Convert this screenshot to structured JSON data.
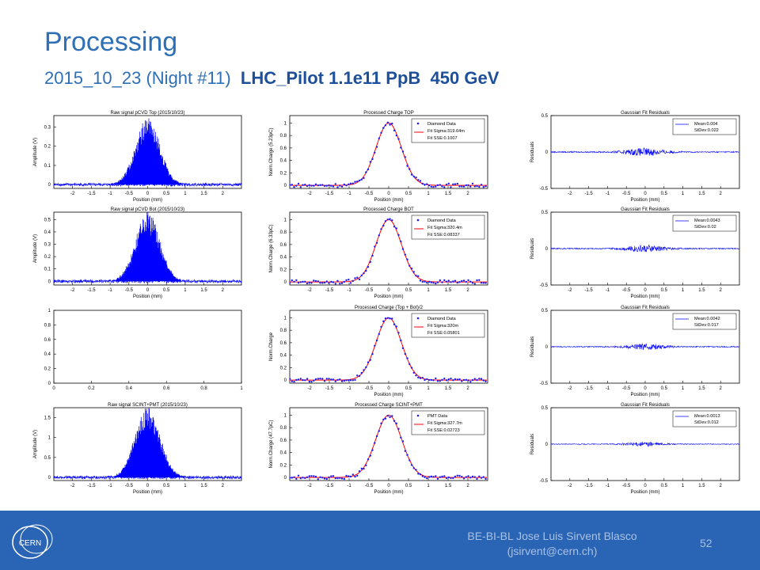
{
  "slide": {
    "title": "Processing",
    "subtitle_plain": "2015_10_23 (Night #11)  ",
    "subtitle_bold": "LHC_Pilot 1.1e11 PpB  450 GeV",
    "footer_line1": "BE-BI-BL Jose Luis Sirvent Blasco",
    "footer_line2": "(jsirvent@cern.ch)",
    "page_number": "52",
    "logo_text": "CERN"
  },
  "colors": {
    "title": "#2e6fb6",
    "footer": "#2a64b4",
    "signal": "#0000ff",
    "fit": "#ff0000",
    "data": "#1a1aff"
  },
  "chart_data": [
    {
      "type": "bar",
      "title": "Raw signal pCVD Top (2015/10/23)",
      "xlabel": "Position (mm)",
      "ylabel": "Amplitude (V)",
      "xlim": [
        -2.5,
        2.5
      ],
      "ylim": [
        -0.02,
        0.36
      ],
      "xticks": [
        "-2",
        "-1.5",
        "-1",
        "-0.5",
        "0",
        "0.5",
        "1",
        "1.5",
        "2"
      ],
      "yticks": [
        "0",
        "0.1",
        "0.2",
        "0.3"
      ],
      "peak": 0.32,
      "sigma_mm": 0.32
    },
    {
      "type": "scatter",
      "title": "Processed Charge TOP",
      "xlabel": "Position (mm)",
      "ylabel": "Norm.Charge (5.23pC)",
      "xlim": [
        -2.5,
        2.5
      ],
      "ylim": [
        -0.05,
        1.12
      ],
      "xticks": [
        "-2",
        "-1.5",
        "-1",
        "-0.5",
        "0",
        "0.5",
        "1",
        "1.5",
        "2"
      ],
      "yticks": [
        "0",
        "0.2",
        "0.4",
        "0.6",
        "0.8",
        "1"
      ],
      "legend": [
        "Diamond Data",
        "Fit Sigma:319.64m",
        "Fit SSE:0.1007"
      ],
      "sigma_mm": 0.32
    },
    {
      "type": "line",
      "title": "Gaussian Fit Residuals",
      "xlabel": "Position (mm)",
      "ylabel": "Residuals",
      "xlim": [
        -2.5,
        2.5
      ],
      "ylim": [
        -0.5,
        0.5
      ],
      "xticks": [
        "-2",
        "-1.5",
        "-1",
        "-0.5",
        "0",
        "0.5",
        "1",
        "1.5",
        "2"
      ],
      "yticks": [
        "-0.5",
        "0",
        "0.5"
      ],
      "legend": [
        "Mean:0.004",
        "StDev:0.022"
      ],
      "noise": 0.022
    },
    {
      "type": "bar",
      "title": "Raw signal pCVD Bot (2015/10/23)",
      "xlabel": "Position (mm)",
      "ylabel": "Amplitude (V)",
      "xlim": [
        -2.5,
        2.5
      ],
      "ylim": [
        -0.03,
        0.56
      ],
      "xticks": [
        "-2",
        "-1.5",
        "-1",
        "-0.5",
        "0",
        "0.5",
        "1",
        "1.5",
        "2"
      ],
      "yticks": [
        "0",
        "0.1",
        "0.2",
        "0.3",
        "0.4",
        "0.5"
      ],
      "peak": 0.52,
      "sigma_mm": 0.32
    },
    {
      "type": "scatter",
      "title": "Processed Charge BOT",
      "xlabel": "Position (mm)",
      "ylabel": "Norm.Charge (6.33pC)",
      "xlim": [
        -2.5,
        2.5
      ],
      "ylim": [
        -0.05,
        1.12
      ],
      "xticks": [
        "-2",
        "-1.5",
        "-1",
        "-0.5",
        "0",
        "0.5",
        "1",
        "1.5",
        "2"
      ],
      "yticks": [
        "0",
        "0.2",
        "0.4",
        "0.6",
        "0.8",
        "1"
      ],
      "legend": [
        "Diamond Data",
        "Fit Sigma:320.4m",
        "Fit SSE:0.08337"
      ],
      "sigma_mm": 0.32
    },
    {
      "type": "line",
      "title": "Gaussian Fit Residuals",
      "xlabel": "Position (mm)",
      "ylabel": "Residuals",
      "xlim": [
        -2.5,
        2.5
      ],
      "ylim": [
        -0.5,
        0.5
      ],
      "xticks": [
        "-2",
        "-1.5",
        "-1",
        "-0.5",
        "0",
        "0.5",
        "1",
        "1.5",
        "2"
      ],
      "yticks": [
        "-0.5",
        "0",
        "0.5"
      ],
      "legend": [
        "Mean:0.0043",
        "StDev:0.02"
      ],
      "noise": 0.02
    },
    {
      "type": "empty",
      "title": "",
      "xlabel": "",
      "ylabel": "",
      "xlim": [
        0,
        1
      ],
      "ylim": [
        0,
        1
      ],
      "xticks": [
        "0",
        "0.2",
        "0.4",
        "0.6",
        "0.8",
        "1"
      ],
      "yticks": [
        "0",
        "0.2",
        "0.4",
        "0.6",
        "0.8",
        "1"
      ]
    },
    {
      "type": "scatter",
      "title": "Processed Charge (Top + Bot)/2",
      "xlabel": "Position (mm)",
      "ylabel": "Norm.Charge",
      "xlim": [
        -2.5,
        2.5
      ],
      "ylim": [
        -0.05,
        1.12
      ],
      "xticks": [
        "-2",
        "-1.5",
        "-1",
        "-0.5",
        "0",
        "0.5",
        "1",
        "1.5",
        "2"
      ],
      "yticks": [
        "0",
        "0.2",
        "0.4",
        "0.6",
        "0.8",
        "1"
      ],
      "legend": [
        "Diamond Data",
        "Fit Sigma:320m",
        "Fit SSE:0.05801"
      ],
      "sigma_mm": 0.32
    },
    {
      "type": "line",
      "title": "Gaussian Fit Residuals",
      "xlabel": "Position (mm)",
      "ylabel": "Residuals",
      "xlim": [
        -2.5,
        2.5
      ],
      "ylim": [
        -0.5,
        0.5
      ],
      "xticks": [
        "-2",
        "-1.5",
        "-1",
        "-0.5",
        "0",
        "0.5",
        "1",
        "1.5",
        "2"
      ],
      "yticks": [
        "-0.5",
        "0",
        "0.5"
      ],
      "legend": [
        "Mean:0.0042",
        "StDev:0.017"
      ],
      "noise": 0.017
    },
    {
      "type": "bar",
      "title": "Raw signal SCINT+PMT (2015/10/23)",
      "xlabel": "Position (mm)",
      "ylabel": "Amplitude (V)",
      "xlim": [
        -2.5,
        2.5
      ],
      "ylim": [
        -0.08,
        1.75
      ],
      "xticks": [
        "-2",
        "-1.5",
        "-1",
        "-0.5",
        "0",
        "0.5",
        "1",
        "1.5",
        "2"
      ],
      "yticks": [
        "0",
        "0.5",
        "1",
        "1.5"
      ],
      "peak": 1.62,
      "sigma_mm": 0.33
    },
    {
      "type": "scatter",
      "title": "Processed Charge SCINT+PMT",
      "xlabel": "Position (mm)",
      "ylabel": "Norm.Charge (47.7pC)",
      "xlim": [
        -2.5,
        2.5
      ],
      "ylim": [
        -0.05,
        1.12
      ],
      "xticks": [
        "-2",
        "-1.5",
        "-1",
        "-0.5",
        "0",
        "0.5",
        "1",
        "1.5",
        "2"
      ],
      "yticks": [
        "0",
        "0.2",
        "0.4",
        "0.6",
        "0.8",
        "1"
      ],
      "legend": [
        "PMT Data",
        "Fit Sigma:327.7m",
        "Fit SSE:0.02723"
      ],
      "sigma_mm": 0.33
    },
    {
      "type": "line",
      "title": "Gaussian Fit Residuals",
      "xlabel": "Position (mm)",
      "ylabel": "Residuals",
      "xlim": [
        -2.5,
        2.5
      ],
      "ylim": [
        -0.5,
        0.5
      ],
      "xticks": [
        "-2",
        "-1.5",
        "-1",
        "-0.5",
        "0",
        "0.5",
        "1",
        "1.5",
        "2"
      ],
      "yticks": [
        "-0.5",
        "0",
        "0.5"
      ],
      "legend": [
        "Mean:0.0013",
        "StDev:0.012"
      ],
      "noise": 0.012
    }
  ]
}
